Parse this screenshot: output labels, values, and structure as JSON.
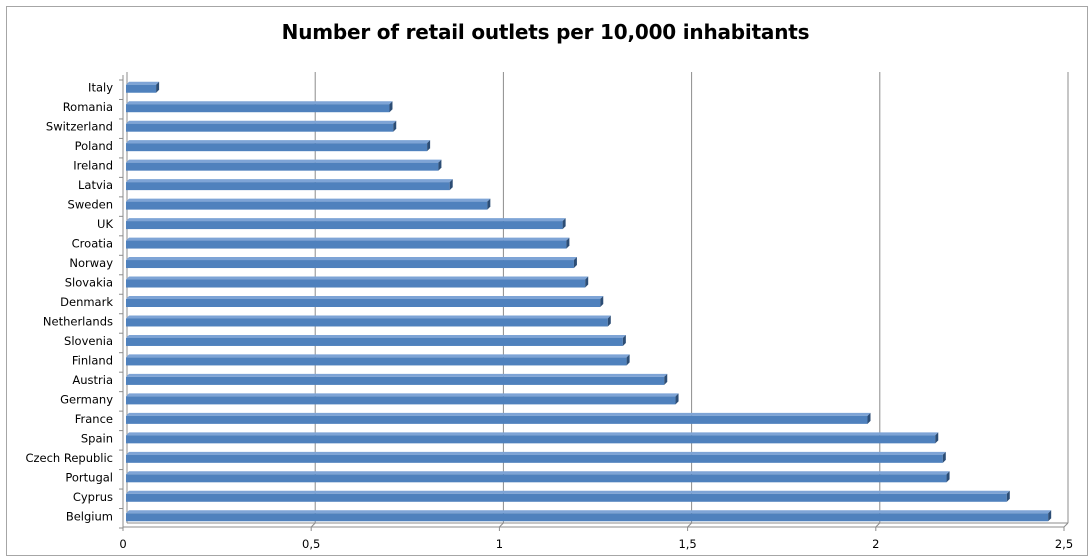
{
  "chart_data": {
    "type": "bar",
    "orientation": "horizontal",
    "title": "Number of retail outlets per 10,000 inhabitants",
    "xlabel": "",
    "ylabel": "",
    "categories": [
      "Italy",
      "Romania",
      "Switzerland",
      "Poland",
      "Ireland",
      "Latvia",
      "Sweden",
      "UK",
      "Croatia",
      "Norway",
      "Slovakia",
      "Denmark",
      "Netherlands",
      "Slovenia",
      "Finland",
      "Austria",
      "Germany",
      "France",
      "Spain",
      "Czech Republic",
      "Portugal",
      "Cyprus",
      "Belgium"
    ],
    "values": [
      0.08,
      0.7,
      0.71,
      0.8,
      0.83,
      0.86,
      0.96,
      1.16,
      1.17,
      1.19,
      1.22,
      1.26,
      1.28,
      1.32,
      1.33,
      1.43,
      1.46,
      1.97,
      2.15,
      2.17,
      2.18,
      2.34,
      2.45
    ],
    "xlim": [
      0,
      2.5
    ],
    "xticks": [
      0,
      0.5,
      1,
      1.5,
      2,
      2.5
    ],
    "xtick_labels": [
      "0",
      "0,5",
      "1",
      "1,5",
      "2",
      "2,5"
    ],
    "grid": "vertical major gridlines",
    "legend": "none",
    "colors": {
      "bar_fill": "#4f81bd",
      "bar_top": "#7ea4d6",
      "bar_end": "#2c4d75",
      "gridline": "#8c8c8c",
      "frame": "#a6a6a6"
    }
  }
}
